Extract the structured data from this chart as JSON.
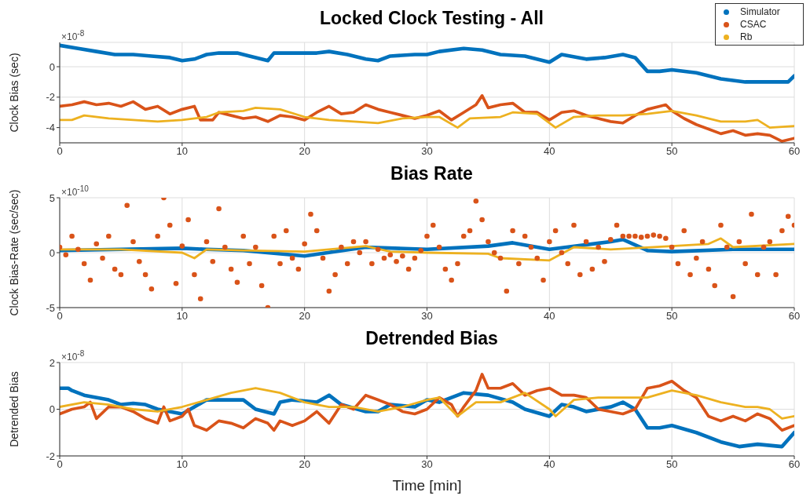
{
  "chart_data": [
    {
      "type": "line",
      "title": "Locked Clock Testing - All",
      "ylabel": "Clock Bias (sec)",
      "annotations": [
        "×10$^{-8}$"
      ],
      "xlim": [
        0,
        60
      ],
      "xticks": [
        0,
        10,
        20,
        30,
        40,
        50,
        60
      ],
      "ylim": [
        -5,
        1.6
      ],
      "yticks": [
        -4,
        -2,
        0
      ],
      "grid": true,
      "legend": "top right",
      "series": [
        {
          "name": "Simulator",
          "color": "#0072bd",
          "x": [
            0,
            1.5,
            3,
            4.5,
            6,
            7.5,
            9,
            10,
            11,
            12,
            13,
            14.5,
            15.5,
            17,
            17.5,
            19,
            21,
            22,
            23.5,
            25,
            26,
            27,
            29,
            30,
            31,
            33,
            34.5,
            36,
            38,
            40,
            41,
            43,
            44.5,
            46,
            47,
            48,
            49,
            50,
            52,
            54,
            56,
            57,
            58,
            59.5,
            60
          ],
          "values": [
            1.4,
            1.2,
            1.0,
            0.8,
            0.8,
            0.7,
            0.6,
            0.4,
            0.5,
            0.8,
            0.9,
            0.9,
            0.7,
            0.4,
            0.9,
            0.9,
            0.9,
            1.0,
            0.8,
            0.5,
            0.4,
            0.7,
            0.8,
            0.8,
            1.0,
            1.2,
            1.1,
            0.8,
            0.7,
            0.3,
            0.8,
            0.5,
            0.6,
            0.8,
            0.6,
            -0.3,
            -0.3,
            -0.2,
            -0.4,
            -0.8,
            -1.0,
            -1.0,
            -1.0,
            -1.0,
            -0.6
          ]
        },
        {
          "name": "CSAC",
          "color": "#d95319",
          "x": [
            0,
            1,
            2,
            3,
            4,
            5,
            6,
            7,
            8,
            9,
            10,
            11,
            11.5,
            12.5,
            13,
            14,
            15,
            16,
            17,
            18,
            19,
            20,
            21,
            22,
            23,
            24,
            25,
            26,
            27,
            28,
            29,
            30,
            31,
            32,
            33,
            34,
            34.5,
            35,
            36,
            37,
            38,
            39,
            40,
            41,
            42,
            43,
            44,
            45,
            46,
            47,
            48,
            49,
            49.5,
            50,
            51,
            52,
            53,
            54,
            55,
            56,
            57,
            58,
            59,
            60
          ],
          "values": [
            -2.6,
            -2.5,
            -2.3,
            -2.5,
            -2.4,
            -2.6,
            -2.3,
            -2.8,
            -2.6,
            -3.1,
            -2.8,
            -2.6,
            -3.5,
            -3.5,
            -3.0,
            -3.2,
            -3.4,
            -3.3,
            -3.6,
            -3.2,
            -3.3,
            -3.5,
            -3.0,
            -2.6,
            -3.1,
            -3.0,
            -2.5,
            -2.8,
            -3.0,
            -3.2,
            -3.4,
            -3.2,
            -2.9,
            -3.5,
            -3.0,
            -2.5,
            -1.9,
            -2.7,
            -2.5,
            -2.4,
            -3.0,
            -3.0,
            -3.5,
            -3.0,
            -2.9,
            -3.2,
            -3.4,
            -3.6,
            -3.7,
            -3.2,
            -2.8,
            -2.6,
            -2.5,
            -2.9,
            -3.4,
            -3.8,
            -4.1,
            -4.4,
            -4.2,
            -4.5,
            -4.4,
            -4.5,
            -4.9,
            -4.7
          ]
        },
        {
          "name": "Rb",
          "color": "#edb120",
          "x": [
            0,
            1,
            2,
            4,
            6,
            8,
            10,
            12,
            13,
            15,
            16,
            18,
            20,
            22,
            24,
            26,
            28,
            30,
            31,
            32.5,
            33.5,
            36,
            37,
            39,
            40.5,
            42,
            44,
            46,
            48,
            50,
            52,
            54,
            56,
            57,
            58,
            60
          ],
          "values": [
            -3.5,
            -3.5,
            -3.2,
            -3.4,
            -3.5,
            -3.6,
            -3.5,
            -3.3,
            -3.0,
            -2.9,
            -2.7,
            -2.8,
            -3.3,
            -3.5,
            -3.6,
            -3.7,
            -3.4,
            -3.3,
            -3.3,
            -4.0,
            -3.4,
            -3.3,
            -3.0,
            -3.1,
            -4.0,
            -3.3,
            -3.2,
            -3.2,
            -3.1,
            -2.9,
            -3.2,
            -3.6,
            -3.6,
            -3.5,
            -4.0,
            -3.9
          ]
        }
      ]
    },
    {
      "type": "line",
      "title": "Bias Rate",
      "ylabel": "Clock Bias-Rate (sec/sec)",
      "annotations": [
        "×10$^{-10}$"
      ],
      "xlim": [
        0,
        60
      ],
      "xticks": [
        0,
        10,
        20,
        30,
        40,
        50,
        60
      ],
      "ylim": [
        -5,
        5
      ],
      "yticks": [
        -5,
        0,
        5
      ],
      "grid": true,
      "series": [
        {
          "color": "#0072bd",
          "x": [
            0,
            5,
            10,
            12,
            15,
            20,
            25,
            30,
            35,
            37,
            40,
            45,
            46,
            48,
            50,
            55,
            60
          ],
          "values": [
            0.2,
            0.3,
            0.4,
            0.3,
            0.2,
            -0.3,
            0.5,
            0.3,
            0.6,
            0.9,
            0.3,
            1.0,
            1.2,
            0.2,
            0.1,
            0.3,
            0.3
          ]
        },
        {
          "type": "scatter",
          "marker": "circle",
          "color": "#d95319",
          "x": [
            0,
            0.5,
            1,
            1.5,
            2,
            2.5,
            3,
            3.5,
            4,
            4.5,
            5,
            5.5,
            6,
            6.5,
            7,
            7.5,
            8,
            8.5,
            9,
            9.5,
            10,
            10.5,
            11,
            11.5,
            12,
            12.5,
            13,
            13.5,
            14,
            14.5,
            15,
            15.5,
            16,
            16.5,
            17,
            17.5,
            18,
            18.5,
            19,
            19.5,
            20,
            20.5,
            21,
            21.5,
            22,
            22.5,
            23,
            23.5,
            24,
            24.5,
            25,
            25.5,
            26,
            26.5,
            27,
            27.5,
            28,
            28.5,
            29,
            29.5,
            30,
            30.5,
            31,
            31.5,
            32,
            32.5,
            33,
            33.5,
            34,
            34.5,
            35,
            35.5,
            36,
            36.5,
            37,
            37.5,
            38,
            38.5,
            39,
            39.5,
            40,
            40.5,
            41,
            41.5,
            42,
            42.5,
            43,
            43.5,
            44,
            44.5,
            45,
            45.5,
            46,
            46.5,
            47,
            47.5,
            48,
            48.5,
            49,
            49.5,
            50,
            50.5,
            51,
            51.5,
            52,
            52.5,
            53,
            53.5,
            54,
            54.5,
            55,
            55.5,
            56,
            56.5,
            57,
            57.5,
            58,
            58.5,
            59,
            59.5,
            60
          ],
          "values": [
            0.5,
            -0.2,
            1.5,
            0.3,
            -1.0,
            -2.5,
            0.8,
            -0.5,
            1.5,
            -1.5,
            -2.0,
            4.3,
            1.0,
            -0.8,
            -2.0,
            -3.3,
            1.5,
            5.0,
            2.5,
            -2.8,
            0.6,
            3.0,
            -2.0,
            -4.2,
            1.0,
            -0.8,
            4.0,
            0.5,
            -1.5,
            -2.7,
            1.5,
            -1.0,
            0.5,
            -3.0,
            -5.0,
            1.5,
            -1.0,
            2.0,
            -0.5,
            -1.5,
            0.8,
            3.5,
            2.0,
            -0.5,
            -3.5,
            -2.0,
            0.5,
            -1.0,
            1.0,
            0.0,
            1.0,
            -1.0,
            0.3,
            -0.5,
            -0.2,
            -0.8,
            -0.3,
            -1.5,
            -0.5,
            0.2,
            1.5,
            2.5,
            0.5,
            -1.5,
            -2.5,
            -1.0,
            1.5,
            2.0,
            4.7,
            3.0,
            1.0,
            0.0,
            -0.5,
            -3.5,
            2.0,
            -1.0,
            1.5,
            0.5,
            -0.5,
            -2.5,
            1.0,
            2.0,
            0.0,
            -1.0,
            2.5,
            -2.0,
            1.0,
            -1.5,
            0.5,
            -0.8,
            1.2,
            2.5,
            1.5,
            1.5,
            1.5,
            1.4,
            1.5,
            1.6,
            1.5,
            1.3,
            0.5,
            -1.0,
            2.0,
            -2.0,
            -0.5,
            1.0,
            -1.5,
            -3.0,
            2.5,
            0.5,
            -4.0,
            1.0,
            -1.0,
            3.5,
            -2.0,
            0.5,
            1.0,
            -2.0,
            2.0,
            3.3,
            2.5
          ]
        },
        {
          "color": "#edb120",
          "x": [
            0,
            5,
            10,
            11,
            12,
            15,
            20,
            25,
            27,
            30,
            35,
            36,
            40,
            42,
            45,
            50,
            53,
            54,
            55,
            60
          ],
          "values": [
            0.3,
            0.3,
            0,
            -0.5,
            0.3,
            0.2,
            0.1,
            0.6,
            0.1,
            0,
            -0.1,
            -0.5,
            -0.7,
            0.5,
            0.3,
            0.6,
            0.8,
            1.3,
            0.5,
            0.8
          ]
        }
      ]
    },
    {
      "type": "line",
      "title": "Detrended Bias",
      "xlabel": "Time [min]",
      "ylabel": "Detrended Bias",
      "annotations": [
        "×10$^{-8}$"
      ],
      "xlim": [
        0,
        60
      ],
      "xticks": [
        0,
        10,
        20,
        30,
        40,
        50,
        60
      ],
      "ylim": [
        -2,
        2
      ],
      "yticks": [
        -2,
        0,
        2
      ],
      "grid": true,
      "series": [
        {
          "color": "#0072bd",
          "x": [
            0,
            0.7,
            1,
            2,
            4,
            5,
            6,
            7,
            8,
            10,
            11,
            12,
            15,
            16,
            17.5,
            18,
            19,
            21,
            22,
            23,
            25,
            26,
            27,
            29,
            30,
            31,
            33,
            35,
            37,
            38,
            40,
            41,
            42,
            43,
            45,
            46,
            47,
            48,
            49,
            50,
            52,
            54,
            55.5,
            57,
            59,
            60
          ],
          "values": [
            0.9,
            0.9,
            0.8,
            0.6,
            0.4,
            0.2,
            0.25,
            0.2,
            0.0,
            -0.2,
            0.1,
            0.4,
            0.4,
            0.0,
            -0.2,
            0.3,
            0.4,
            0.3,
            0.6,
            0.2,
            -0.1,
            -0.1,
            0.2,
            0.1,
            0.4,
            0.3,
            0.7,
            0.6,
            0.3,
            0.0,
            -0.3,
            0.2,
            0.1,
            -0.1,
            0.1,
            0.3,
            0.0,
            -0.8,
            -0.8,
            -0.7,
            -1.0,
            -1.4,
            -1.6,
            -1.5,
            -1.6,
            -1.0
          ]
        },
        {
          "color": "#d95319",
          "x": [
            0,
            1,
            2,
            2.5,
            3,
            4,
            5,
            6,
            7,
            8,
            8.5,
            9,
            10,
            10.5,
            11,
            12,
            13,
            14,
            15,
            16,
            17,
            17.5,
            18,
            19,
            20,
            21,
            22,
            23,
            24,
            25,
            26,
            27,
            28,
            29,
            30,
            31,
            32,
            32.5,
            33,
            34,
            34.5,
            35,
            36,
            37,
            38,
            39,
            40,
            41,
            42,
            43,
            44,
            45,
            46,
            47,
            48,
            49,
            50,
            51,
            52,
            53,
            54,
            55,
            56,
            57,
            58,
            59,
            60
          ],
          "values": [
            -0.2,
            0.0,
            0.1,
            0.3,
            -0.4,
            0.1,
            0.1,
            -0.1,
            -0.4,
            -0.6,
            0.1,
            -0.5,
            -0.3,
            0.0,
            -0.7,
            -0.9,
            -0.5,
            -0.6,
            -0.8,
            -0.4,
            -0.6,
            -0.9,
            -0.5,
            -0.7,
            -0.5,
            -0.1,
            -0.6,
            0.2,
            0.0,
            0.6,
            0.4,
            0.2,
            -0.1,
            -0.2,
            0.0,
            0.5,
            0.2,
            -0.3,
            0.1,
            0.8,
            1.5,
            0.9,
            0.9,
            1.1,
            0.6,
            0.8,
            0.9,
            0.6,
            0.6,
            0.5,
            0.0,
            -0.1,
            -0.2,
            0.0,
            0.9,
            1.0,
            1.2,
            0.8,
            0.5,
            -0.3,
            -0.5,
            -0.3,
            -0.5,
            -0.2,
            -0.4,
            -0.9,
            -0.7
          ]
        },
        {
          "color": "#edb120",
          "x": [
            0,
            2,
            4,
            6,
            8,
            10,
            12,
            14,
            16,
            18,
            20,
            22,
            24,
            26,
            28,
            30,
            31,
            32.5,
            34,
            36,
            38,
            40,
            40.5,
            42,
            44,
            46,
            48,
            50,
            52,
            54,
            56,
            57,
            58,
            59,
            60
          ],
          "values": [
            0.1,
            0.3,
            0.2,
            0.0,
            -0.1,
            0.1,
            0.4,
            0.7,
            0.9,
            0.7,
            0.3,
            0.1,
            0.1,
            -0.1,
            0.1,
            0.4,
            0.5,
            -0.3,
            0.3,
            0.3,
            0.7,
            0.0,
            -0.3,
            0.4,
            0.5,
            0.5,
            0.5,
            0.8,
            0.6,
            0.3,
            0.1,
            0.1,
            0.0,
            -0.4,
            -0.3
          ]
        }
      ]
    }
  ]
}
